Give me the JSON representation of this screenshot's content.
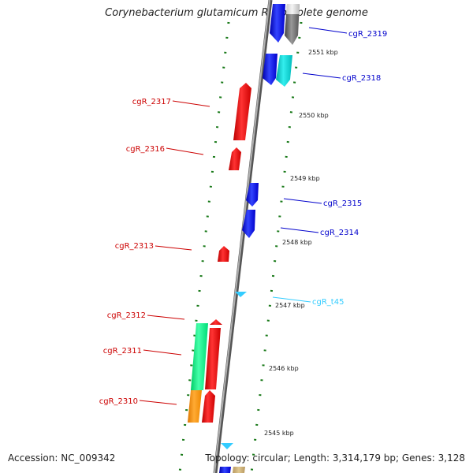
{
  "title": "Corynebacterium glutamicum R, complete genome",
  "footer": {
    "accession": "Accession: NC_009342",
    "topology": "Topology: circular; Length: 3,314,179 bp; Genes: 3,128"
  },
  "colors": {
    "backbone": "#7f7f7f",
    "tick": "#1a7a1a",
    "forward_gene": "#0000ff",
    "reverse_gene": "#ff0000",
    "trna": "#33ccff",
    "label_blue": "#0000cc",
    "label_red": "#cc0000",
    "label_cyan": "#33ccff"
  },
  "scale_labels": [
    "2551 kbp",
    "2550 kbp",
    "2549 kbp",
    "2548 kbp",
    "2547 kbp",
    "2546 kbp",
    "2545 kbp"
  ],
  "genes": [
    {
      "id": "cgR_2319",
      "strand": "forward",
      "color": "#0000ff"
    },
    {
      "id": "cgR_2319_partner",
      "strand": "forward",
      "color": "#666666"
    },
    {
      "id": "cgR_2318",
      "strand": "forward",
      "color": "#0000ff"
    },
    {
      "id": "cgR_2318_partner",
      "strand": "forward",
      "color": "#00cccc"
    },
    {
      "id": "cgR_2317",
      "strand": "reverse",
      "color": "#ff0000"
    },
    {
      "id": "cgR_2316",
      "strand": "reverse",
      "color": "#ff0000"
    },
    {
      "id": "cgR_2315",
      "strand": "forward",
      "color": "#0000ff"
    },
    {
      "id": "cgR_2314",
      "strand": "forward",
      "color": "#0000ff"
    },
    {
      "id": "cgR_2313",
      "strand": "reverse",
      "color": "#ff0000"
    },
    {
      "id": "cgR_t45",
      "strand": "trna",
      "color": "#33ccff"
    },
    {
      "id": "cgR_2312",
      "strand": "reverse",
      "color": "#ff0000"
    },
    {
      "id": "cgR_2311",
      "strand": "reverse",
      "color": "#00ee88"
    },
    {
      "id": "cgR_2310",
      "strand": "reverse",
      "color": "#ff8800"
    }
  ],
  "labels": [
    {
      "text": "cgR_2319",
      "color": "#0000cc"
    },
    {
      "text": "cgR_2318",
      "color": "#0000cc"
    },
    {
      "text": "cgR_2317",
      "color": "#cc0000"
    },
    {
      "text": "cgR_2316",
      "color": "#cc0000"
    },
    {
      "text": "cgR_2315",
      "color": "#0000cc"
    },
    {
      "text": "cgR_2314",
      "color": "#0000cc"
    },
    {
      "text": "cgR_2313",
      "color": "#cc0000"
    },
    {
      "text": "cgR_t45",
      "color": "#33ccff"
    },
    {
      "text": "cgR_2312",
      "color": "#cc0000"
    },
    {
      "text": "cgR_2311",
      "color": "#cc0000"
    },
    {
      "text": "cgR_2310",
      "color": "#cc0000"
    }
  ]
}
